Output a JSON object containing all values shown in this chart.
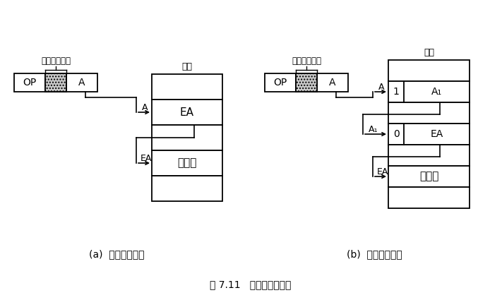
{
  "title": "图 7.11   间接寻址示意图",
  "bg_color": "#ffffff",
  "left_label": "(a)  一次间接寻址",
  "right_label": "(b)  两次间接寻址",
  "fig_width": 7.11,
  "fig_height": 4.25,
  "dpi": 100
}
